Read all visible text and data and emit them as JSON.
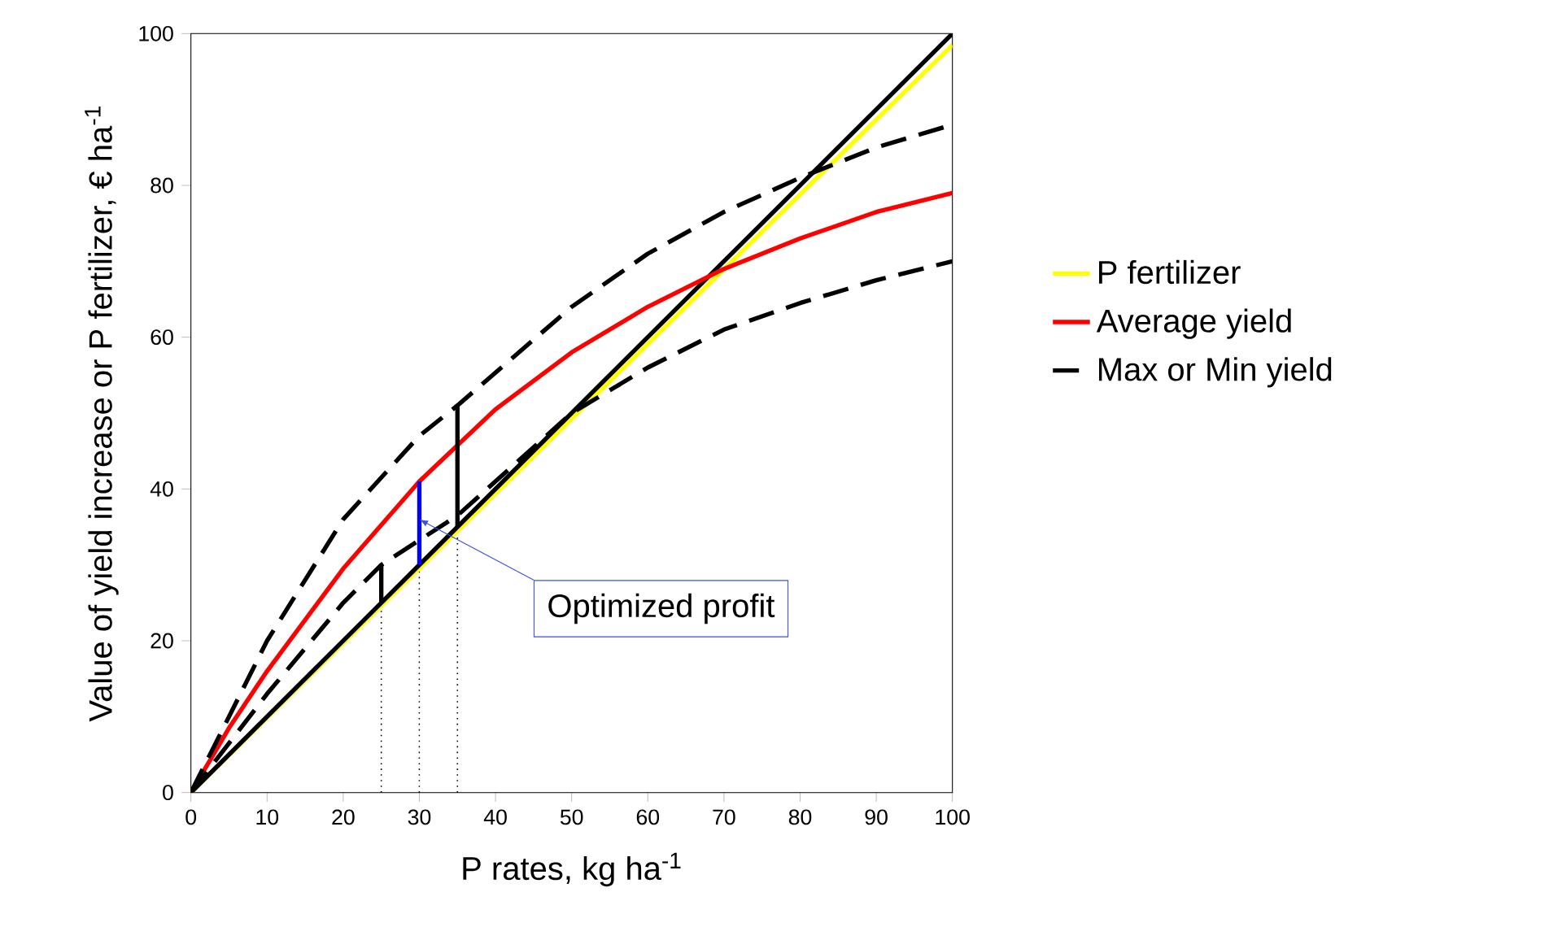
{
  "chart_data": {
    "type": "line",
    "xlabel": "P rates, kg ha$^{-1}$",
    "ylabel": "Value of yield increase or P fertilizer, € ha$^{-1}$",
    "xlim": [
      0,
      100
    ],
    "ylim": [
      0,
      100
    ],
    "xticks": [
      0,
      10,
      20,
      30,
      40,
      50,
      60,
      70,
      80,
      90,
      100
    ],
    "yticks": [
      0,
      20,
      40,
      60,
      80,
      100
    ],
    "grid": false,
    "legend": "right",
    "marker": "none",
    "series": [
      {
        "x": [
          25,
          25
        ],
        "values": [
          0,
          25
        ],
        "color": "#000000",
        "line_style": "dotted"
      },
      {
        "x": [
          30,
          30
        ],
        "values": [
          0,
          30
        ],
        "color": "#000000",
        "line_style": "dotted"
      },
      {
        "x": [
          35,
          35
        ],
        "values": [
          0,
          35
        ],
        "color": "#000000",
        "line_style": "dotted"
      },
      {
        "name": "P fertilizer",
        "x": [
          0,
          100
        ],
        "values": [
          0,
          98.5
        ],
        "color": "#ffff00",
        "line_style": "solid"
      },
      {
        "x": [
          0,
          100
        ],
        "values": [
          0,
          100
        ],
        "color": "#000000",
        "line_style": "solid"
      },
      {
        "name": "Average yield",
        "x": [
          0,
          5,
          10,
          20,
          30,
          40,
          50,
          60,
          70,
          80,
          90,
          100
        ],
        "values": [
          0,
          8.5,
          16,
          29.5,
          41,
          50.5,
          58,
          64,
          69,
          73,
          76.5,
          79
        ],
        "color": "#ff0000",
        "line_style": "solid"
      },
      {
        "name": "Max or Min yield",
        "x": [
          0,
          10,
          20,
          30,
          35,
          50,
          60,
          70,
          80,
          90,
          100
        ],
        "values": [
          0,
          20,
          36,
          47,
          51,
          64,
          71,
          76.5,
          81,
          85,
          88
        ],
        "color": "#000000",
        "line_style": "dashed"
      },
      {
        "x": [
          0,
          10,
          20,
          25,
          35,
          50,
          60,
          70,
          80,
          90,
          100
        ],
        "values": [
          0,
          13,
          25,
          30,
          36.5,
          50,
          56,
          61,
          64.5,
          67.5,
          70
        ],
        "color": "#000000",
        "line_style": "dashed"
      },
      {
        "x": [
          25,
          25
        ],
        "values": [
          25,
          30
        ],
        "color": "#000000",
        "line_style": "solid"
      },
      {
        "x": [
          35,
          35
        ],
        "values": [
          35,
          51
        ],
        "color": "#000000",
        "line_style": "solid"
      },
      {
        "x": [
          30,
          30
        ],
        "values": [
          30,
          41
        ],
        "color": "#0000ff",
        "line_style": "solid"
      }
    ],
    "annotations": [
      {
        "text": "Optimized profit",
        "x": 30,
        "y": 36
      }
    ]
  }
}
